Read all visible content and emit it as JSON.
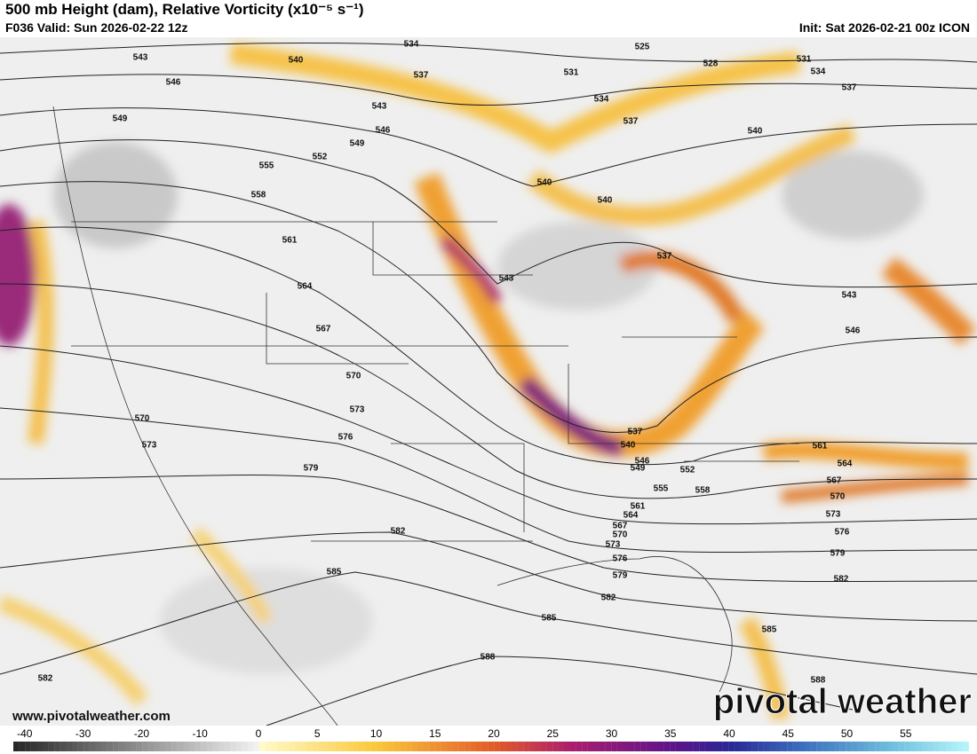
{
  "header": {
    "title": "500 mb Height (dam), Relative Vorticity (x10⁻⁵ s⁻¹)",
    "valid": "F036 Valid: Sun 2026-02-22 12z",
    "init": "Init: Sat 2026-02-21 00z ICON"
  },
  "contour_labels": [
    534,
    525,
    543,
    540,
    528,
    531,
    534,
    537,
    531,
    546,
    537,
    534,
    543,
    549,
    537,
    546,
    540,
    549,
    552,
    555,
    540,
    540,
    558,
    561,
    537,
    543,
    543,
    564,
    567,
    546,
    570,
    573,
    570,
    573,
    537,
    540,
    576,
    561,
    546,
    549,
    552,
    564,
    579,
    567,
    555,
    558,
    570,
    561,
    564,
    573,
    567,
    576,
    582,
    570,
    573,
    579,
    576,
    585,
    579,
    582,
    582,
    585,
    585,
    588,
    588,
    582
  ],
  "website": "www.pivotalweather.com",
  "watermark": "pivotal weather",
  "colorbar": {
    "ticks": [
      -40,
      -30,
      -20,
      -10,
      0,
      5,
      10,
      15,
      20,
      25,
      30,
      35,
      40,
      45,
      50,
      55
    ]
  }
}
